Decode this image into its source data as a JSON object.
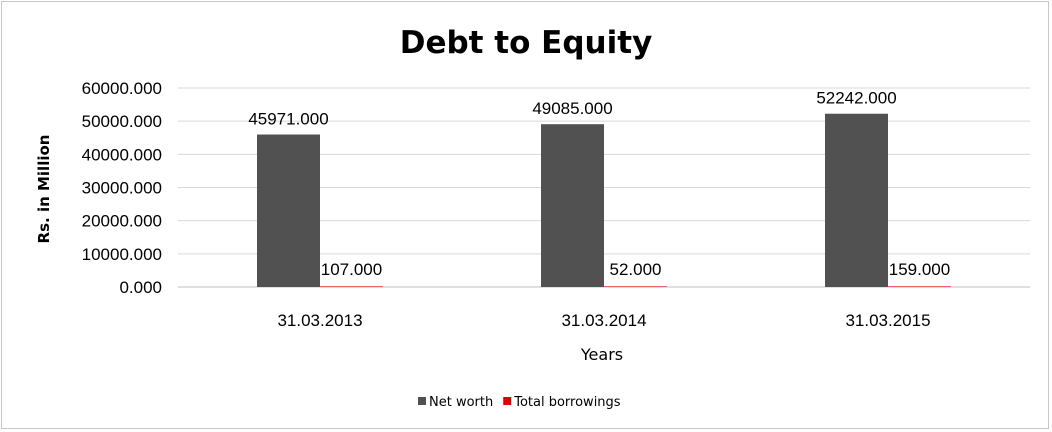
{
  "chart_data": {
    "type": "bar",
    "title": "Debt to Equity",
    "xlabel": "Years",
    "ylabel": "Rs. in Million",
    "categories": [
      "31.03.2013",
      "31.03.2014",
      "31.03.2015"
    ],
    "series": [
      {
        "name": "Net worth",
        "values": [
          45971.0,
          49085.0,
          52242.0
        ],
        "color": "#515151",
        "labels": [
          "45971.000",
          "49085.000",
          "52242.000"
        ]
      },
      {
        "name": "Total borrowings",
        "values": [
          107.0,
          52.0,
          159.0
        ],
        "color": "#e00000",
        "labels": [
          "107.000",
          "52.000",
          "159.000"
        ]
      }
    ],
    "ylim": [
      0,
      60000
    ],
    "yticks": [
      0,
      10000,
      20000,
      30000,
      40000,
      50000,
      60000
    ],
    "ytick_labels": [
      "0.000",
      "10000.000",
      "20000.000",
      "30000.000",
      "40000.000",
      "50000.000",
      "60000.000"
    ],
    "grid": true,
    "legend": "bottom"
  }
}
